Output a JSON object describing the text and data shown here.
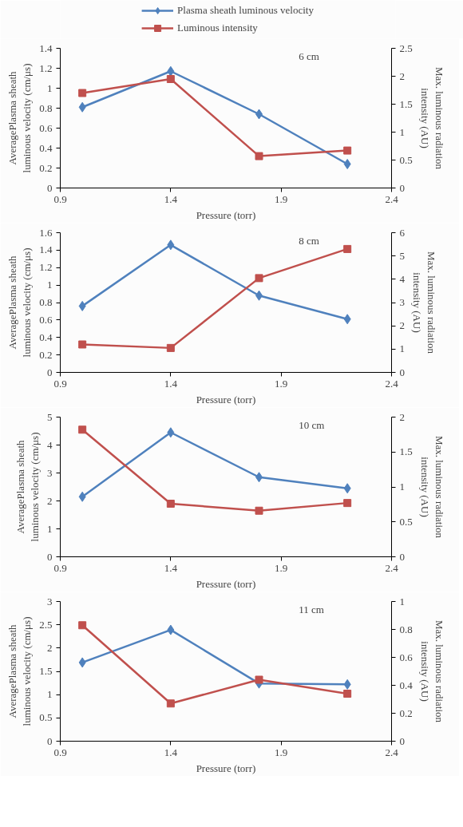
{
  "chart_data": [
    {
      "type": "line",
      "xlabel": "Pressure (torr)",
      "ylabel": "AveragePlasma sheath luminous velocity (cm/μs)",
      "y2label": "Max. luminous radiation intensity (AU)",
      "annotations": [
        "6 cm"
      ],
      "x": [
        1.0,
        1.4,
        1.8,
        2.2
      ],
      "xlim": [
        0.9,
        2.4
      ],
      "xticks": [
        0.9,
        1.4,
        1.9,
        2.4
      ],
      "ylim": [
        0,
        1.4
      ],
      "yticks": [
        0,
        0.2,
        0.4,
        0.6,
        0.8,
        1,
        1.2,
        1.4
      ],
      "y2lim": [
        0,
        2.5
      ],
      "y2ticks": [
        0,
        0.5,
        1,
        1.5,
        2,
        2.5
      ],
      "grid": false,
      "legend": "top",
      "series": [
        {
          "name": "Plasma sheath luminous velocity",
          "color": "#4f81bd",
          "marker": "diamond",
          "values": [
            0.81,
            1.17,
            0.74,
            0.24
          ]
        },
        {
          "name": "Luminous intensity",
          "color": "#c0504d",
          "marker": "square",
          "axis": "y2",
          "values": [
            1.7,
            1.95,
            0.57,
            0.67
          ]
        }
      ]
    },
    {
      "type": "line",
      "xlabel": "Pressure (torr)",
      "ylabel": "AveragePlasma sheath luminous velocity (cm/μs)",
      "y2label": "Max. luminous radiation intensity (AU)",
      "annotations": [
        "8 cm"
      ],
      "x": [
        1.0,
        1.4,
        1.8,
        2.2
      ],
      "xlim": [
        0.9,
        2.4
      ],
      "xticks": [
        0.9,
        1.4,
        1.9,
        2.4
      ],
      "ylim": [
        0,
        1.6
      ],
      "yticks": [
        0,
        0.2,
        0.4,
        0.6,
        0.8,
        1,
        1.2,
        1.4,
        1.6
      ],
      "y2lim": [
        0,
        6
      ],
      "y2ticks": [
        0,
        1,
        2,
        3,
        4,
        5,
        6
      ],
      "grid": false,
      "series": [
        {
          "color": "#4f81bd",
          "marker": "diamond",
          "values": [
            0.76,
            1.46,
            0.88,
            0.61
          ]
        },
        {
          "color": "#c0504d",
          "marker": "square",
          "axis": "y2",
          "values": [
            1.2,
            1.05,
            4.05,
            5.3
          ]
        }
      ]
    },
    {
      "type": "line",
      "xlabel": "Pressure (torr)",
      "ylabel": "AveragePlasma sheath luminous velocity (cm/μs)",
      "y2label": "Max. luminous radiation intensity (AU)",
      "annotations": [
        "10 cm"
      ],
      "x": [
        1.0,
        1.4,
        1.8,
        2.2
      ],
      "xlim": [
        0.9,
        2.4
      ],
      "xticks": [
        0.9,
        1.4,
        1.9,
        2.4
      ],
      "ylim": [
        0,
        5
      ],
      "yticks": [
        0,
        1,
        2,
        3,
        4,
        5
      ],
      "y2lim": [
        0,
        2
      ],
      "y2ticks": [
        0,
        0.5,
        1,
        1.5,
        2
      ],
      "grid": false,
      "series": [
        {
          "color": "#4f81bd",
          "marker": "diamond",
          "values": [
            2.15,
            4.45,
            2.85,
            2.45
          ]
        },
        {
          "color": "#c0504d",
          "marker": "square",
          "axis": "y2",
          "values": [
            1.82,
            0.76,
            0.66,
            0.77
          ]
        }
      ]
    },
    {
      "type": "line",
      "xlabel": "Pressure (torr)",
      "ylabel": "AveragePlasma sheath luminous velocity (cm/μs)",
      "y2label": "Max. luminous radiation intensity (AU)",
      "annotations": [
        "11 cm"
      ],
      "x": [
        1.0,
        1.4,
        1.8,
        2.2
      ],
      "xlim": [
        0.9,
        2.4
      ],
      "xticks": [
        0.9,
        1.4,
        1.9,
        2.4
      ],
      "ylim": [
        0,
        3
      ],
      "yticks": [
        0,
        0.5,
        1,
        1.5,
        2,
        2.5,
        3
      ],
      "y2lim": [
        0,
        1
      ],
      "y2ticks": [
        0,
        0.2,
        0.4,
        0.6,
        0.8,
        1
      ],
      "grid": false,
      "series": [
        {
          "color": "#4f81bd",
          "marker": "diamond",
          "values": [
            1.69,
            2.39,
            1.24,
            1.22
          ]
        },
        {
          "color": "#c0504d",
          "marker": "square",
          "axis": "y2",
          "values": [
            0.83,
            0.27,
            0.44,
            0.34
          ]
        }
      ]
    }
  ]
}
